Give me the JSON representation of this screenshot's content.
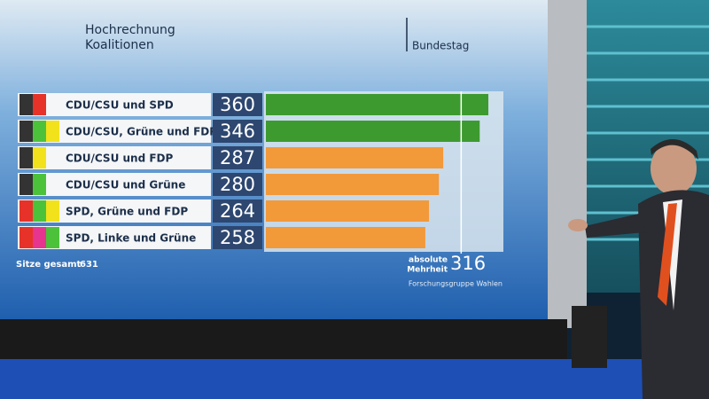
{
  "chart_data": {
    "type": "bar",
    "title": "Hochrechnung Koalitionen",
    "subtitle": "Bundestag",
    "categories": [
      "CDU/CSU und SPD",
      "CDU/CSU, Grüne und FDP",
      "CDU/CSU und FDP",
      "CDU/CSU und Grüne",
      "SPD, Grüne und FDP",
      "SPD, Linke und Grüne"
    ],
    "values": [
      360,
      346,
      287,
      280,
      264,
      258
    ],
    "colors": [
      "#3d9a2f",
      "#3d9a2f",
      "#f2993a",
      "#f2993a",
      "#f2993a",
      "#f2993a"
    ],
    "swatches": [
      [
        "#333333",
        "#e63228"
      ],
      [
        "#333333",
        "#4cc23a",
        "#f1e21c"
      ],
      [
        "#333333",
        "#f1e21c"
      ],
      [
        "#333333",
        "#4cc23a"
      ],
      [
        "#e63228",
        "#4cc23a",
        "#f1e21c"
      ],
      [
        "#e63228",
        "#e5358f",
        "#4cc23a"
      ]
    ],
    "total_label": "Sitze gesamt",
    "total": 631,
    "majority_label": [
      "absolute",
      "Mehrheit"
    ],
    "majority": 316,
    "source": "Forschungsgruppe Wahlen"
  }
}
